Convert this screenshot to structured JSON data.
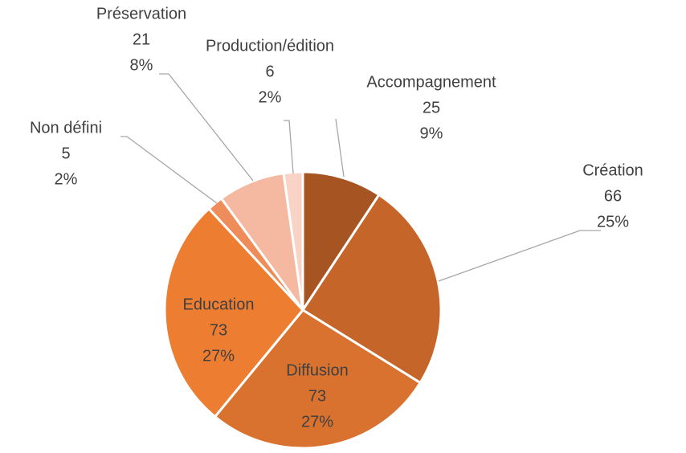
{
  "chart_data": {
    "type": "pie",
    "categories": [
      "Accompagnement",
      "Création",
      "Diffusion",
      "Education",
      "Non défini",
      "Préservation",
      "Production/édition"
    ],
    "values": [
      25,
      66,
      73,
      73,
      5,
      21,
      6
    ],
    "percent_labels": [
      "9%",
      "25%",
      "27%",
      "27%",
      "2%",
      "8%",
      "2%"
    ],
    "colors": [
      "#a65522",
      "#c5652a",
      "#d9722f",
      "#ed7d31",
      "#ee8c5a",
      "#f4b9a0",
      "#f8d3c6"
    ]
  }
}
